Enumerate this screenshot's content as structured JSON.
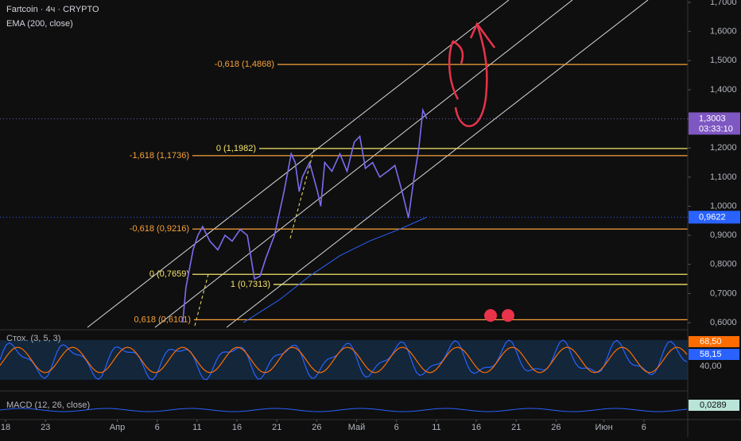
{
  "chart_data": {
    "type": "line",
    "title": "Fartcoin · 4ч · CRYPTO",
    "xlim": [
      -0.7,
      85.5
    ],
    "xticks": [
      {
        "value": 0,
        "label": "18"
      },
      {
        "value": 5,
        "label": "23"
      },
      {
        "value": 14,
        "label": "Апр"
      },
      {
        "value": 19,
        "label": "6"
      },
      {
        "value": 24,
        "label": "11"
      },
      {
        "value": 29,
        "label": "16"
      },
      {
        "value": 34,
        "label": "21"
      },
      {
        "value": 39,
        "label": "26"
      },
      {
        "value": 44,
        "label": "Май"
      },
      {
        "value": 49,
        "label": "6"
      },
      {
        "value": 54,
        "label": "11"
      },
      {
        "value": 59,
        "label": "16"
      },
      {
        "value": 64,
        "label": "21"
      },
      {
        "value": 69,
        "label": "26"
      },
      {
        "value": 75,
        "label": "Июн"
      },
      {
        "value": 80,
        "label": "6"
      }
    ],
    "ylim": [
      0.5756,
      1.7082
    ],
    "yticks": [
      {
        "value": 0.6,
        "label": "0,6000"
      },
      {
        "value": 0.7,
        "label": "0,7000"
      },
      {
        "value": 0.8,
        "label": "0,8000"
      },
      {
        "value": 0.9,
        "label": "0,9000"
      },
      {
        "value": 1.0,
        "label": "1,0000"
      },
      {
        "value": 1.1,
        "label": "1,1000"
      },
      {
        "value": 1.2,
        "label": "1,2000"
      },
      {
        "value": 1.3,
        "label": "1,3000"
      },
      {
        "value": 1.4,
        "label": "1,4000"
      },
      {
        "value": 1.5,
        "label": "1,5000"
      },
      {
        "value": 1.6,
        "label": "1,6000"
      },
      {
        "value": 1.7,
        "label": "1,7000"
      }
    ],
    "series": [
      {
        "color": "#7b6cf0",
        "x": [
          22.2,
          22.6,
          23.5,
          24.1,
          24.7,
          25.6,
          26.6,
          27.5,
          28.4,
          29.4,
          30.3,
          31.2,
          31.9,
          32.6,
          33.7,
          34.9,
          35.8,
          36.3,
          36.8,
          37.2,
          38.1,
          39.1,
          39.5,
          40.0,
          40.9,
          41.9,
          42.8,
          43.7,
          44.4,
          45.1,
          46.0,
          46.9,
          47.9,
          48.8,
          49.7,
          50.5,
          51.1,
          51.8,
          52.3,
          52.8
        ],
        "values": [
          0.6,
          0.72,
          0.85,
          0.9,
          0.93,
          0.88,
          0.85,
          0.9,
          0.88,
          0.92,
          0.9,
          0.75,
          0.76,
          0.82,
          0.9,
          1.05,
          1.18,
          1.15,
          1.05,
          1.1,
          1.15,
          1.05,
          1.0,
          1.15,
          1.12,
          1.18,
          1.12,
          1.22,
          1.24,
          1.13,
          1.15,
          1.1,
          1.12,
          1.14,
          1.05,
          0.96,
          1.08,
          1.2,
          1.33,
          1.3
        ]
      },
      {
        "name": "EMA (200, close)",
        "color": "#2962ff",
        "x": [
          29.8,
          34.4,
          38.1,
          41.9,
          45.6,
          49.3,
          52.8
        ],
        "values": [
          0.6,
          0.68,
          0.76,
          0.83,
          0.88,
          0.92,
          0.9622
        ]
      }
    ],
    "levels": [
      {
        "value": 1.4868,
        "label": "-0,618 (1,4868)",
        "color": "#f7a23b"
      },
      {
        "value": 1.1982,
        "label": "0 (1,1982)",
        "color": "#f5e36b"
      },
      {
        "value": 1.1736,
        "label": "-1,618 (1,1736)",
        "color": "#f7a23b"
      },
      {
        "value": 0.9216,
        "label": "-0,618 (0,9216)",
        "color": "#f7a23b"
      },
      {
        "value": 0.7659,
        "label": "0 (0,7659)",
        "color": "#f5e36b"
      },
      {
        "value": 0.7313,
        "label": "1 (0,7313)",
        "color": "#f5e36b"
      },
      {
        "value": 0.6101,
        "label": "0,618 (0,6101)",
        "color": "#f7a23b"
      }
    ],
    "last_price": {
      "value": 1.3003,
      "label": "1,3003",
      "countdown": "03:33:10",
      "color": "#7e57c2"
    },
    "ema_last": {
      "value": 0.9622,
      "label": "0,9622",
      "color": "#2962ff"
    }
  },
  "stoch": {
    "title": "Стох. (3, 5, 3)",
    "labels": [
      "68,50",
      "58,15",
      "40,00"
    ]
  },
  "macd": {
    "title": "MACD (12, 26, close)",
    "label": "0,0289"
  }
}
